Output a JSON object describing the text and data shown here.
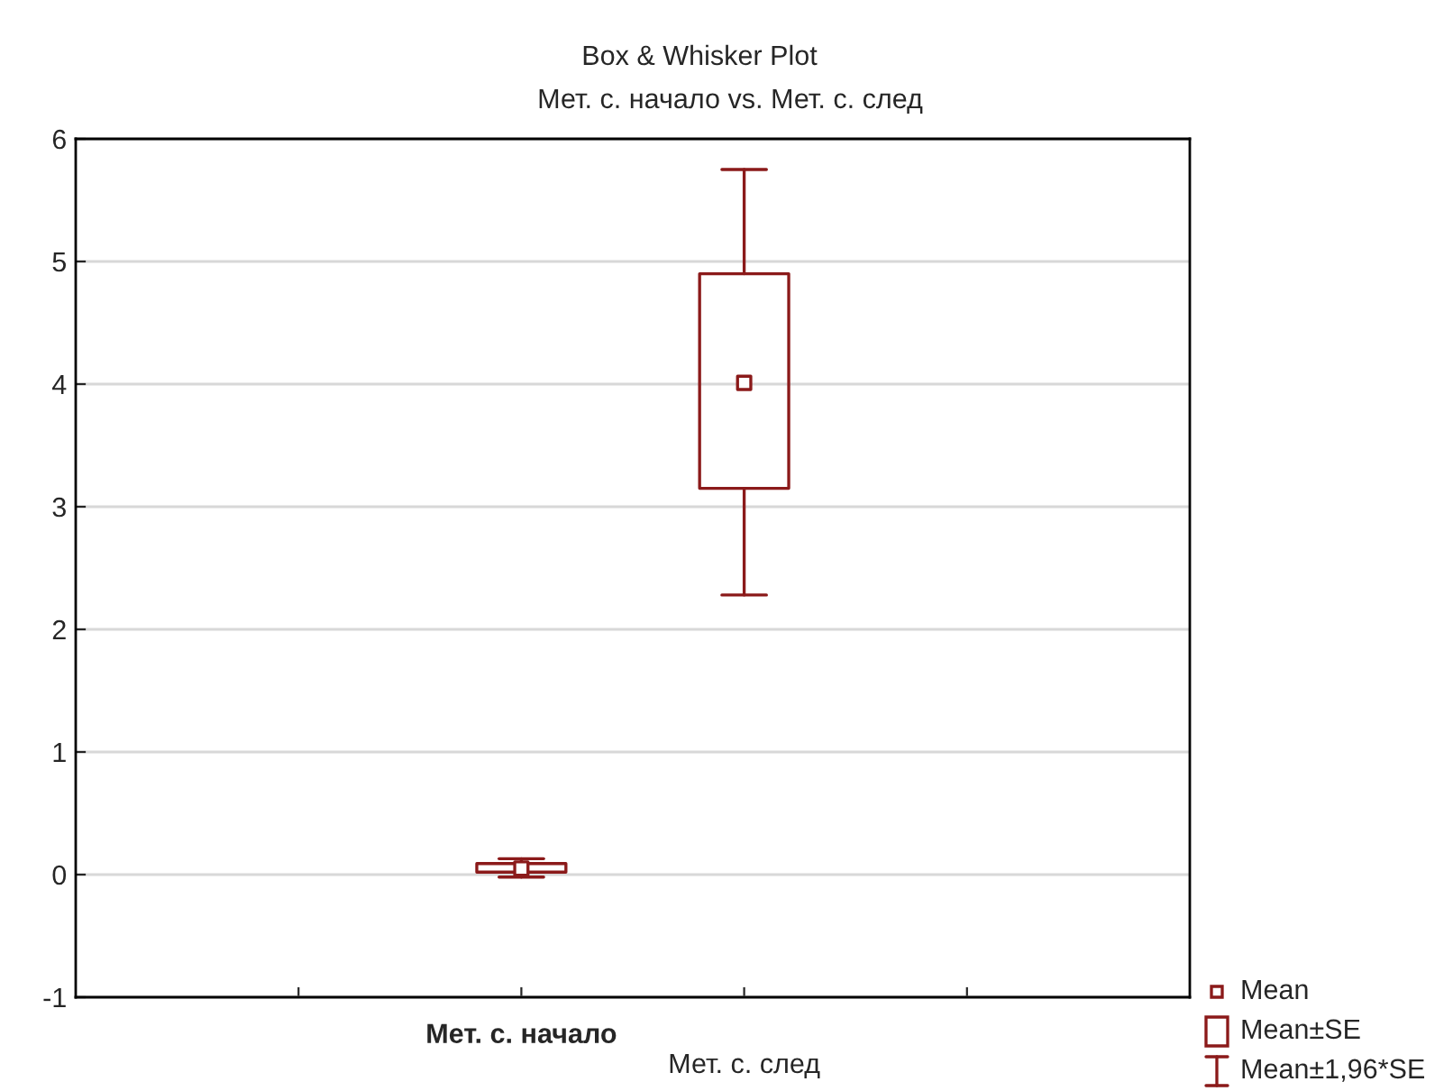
{
  "chart_data": {
    "type": "box",
    "title": "Box & Whisker Plot",
    "subtitle": "Мет. с. начало vs. Мет. с. след",
    "categories": [
      "Мет. с. начало",
      "Мет. с. след"
    ],
    "boxes": [
      {
        "low": -0.02,
        "q1": 0.02,
        "median": 0.05,
        "q3": 0.09,
        "high": 0.13
      },
      {
        "low": 2.28,
        "q1": 3.15,
        "median": 4.01,
        "q3": 4.9,
        "high": 5.75
      }
    ],
    "color": "#8b1a1a",
    "ylim": [
      -1,
      6
    ],
    "yticks": [
      -1,
      0,
      1,
      2,
      3,
      4,
      5,
      6
    ],
    "grid": "y",
    "annotations": [
      "Mean",
      "Mean±SE",
      "Mean±1,96*SE"
    ]
  }
}
